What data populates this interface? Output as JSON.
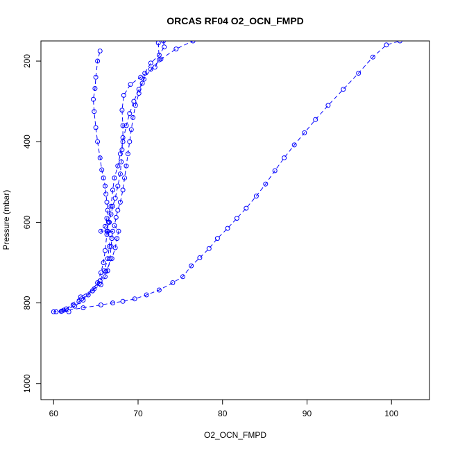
{
  "chart_data": {
    "type": "scatter",
    "title": "ORCAS RF04 O2_OCN_FMPD",
    "xlabel": "O2_OCN_FMPD",
    "ylabel": "Pressure (mbar)",
    "xlim": [
      58.5,
      104.5
    ],
    "ylim": [
      1040,
      150
    ],
    "y_reversed": true,
    "grid": false,
    "legend": "none",
    "x_ticks": [
      60,
      70,
      80,
      90,
      100
    ],
    "y_ticks": [
      200,
      400,
      600,
      800,
      1000
    ],
    "color": "#0000ff",
    "series": [
      {
        "points": [
          [
            61.8,
            822
          ],
          [
            60.9,
            821
          ],
          [
            60.3,
            822
          ],
          [
            60.0,
            822
          ],
          [
            61.5,
            815
          ],
          [
            62.3,
            805
          ],
          [
            63.0,
            797
          ],
          [
            64.1,
            780
          ],
          [
            65.2,
            750
          ],
          [
            65.6,
            725
          ],
          [
            65.9,
            700
          ],
          [
            66.1,
            670
          ],
          [
            66.3,
            630
          ],
          [
            66.5,
            600
          ],
          [
            66.8,
            560
          ],
          [
            67.0,
            520
          ],
          [
            67.2,
            490
          ],
          [
            67.6,
            460
          ],
          [
            67.9,
            430
          ],
          [
            68.2,
            400
          ],
          [
            68.6,
            360
          ],
          [
            69.0,
            330
          ],
          [
            69.5,
            300
          ],
          [
            70.1,
            270
          ],
          [
            70.7,
            245
          ],
          [
            71.5,
            220
          ],
          [
            72.7,
            195
          ],
          [
            74.5,
            170
          ],
          [
            76.5,
            150
          ]
        ]
      },
      {
        "points": [
          [
            61.2,
            818
          ],
          [
            62.5,
            808
          ],
          [
            63.5,
            793
          ],
          [
            64.6,
            770
          ],
          [
            65.5,
            745
          ],
          [
            66.0,
            720
          ],
          [
            66.4,
            690
          ],
          [
            66.6,
            660
          ],
          [
            66.7,
            630
          ],
          [
            66.4,
            622
          ],
          [
            65.6,
            622
          ],
          [
            66.1,
            610
          ],
          [
            66.3,
            590
          ],
          [
            66.4,
            570
          ],
          [
            66.3,
            550
          ],
          [
            66.2,
            530
          ],
          [
            66.1,
            510
          ],
          [
            65.9,
            490
          ],
          [
            65.7,
            470
          ],
          [
            65.5,
            440
          ],
          [
            65.2,
            400
          ],
          [
            65.0,
            365
          ],
          [
            64.8,
            325
          ],
          [
            64.7,
            295
          ],
          [
            64.9,
            268
          ],
          [
            65.0,
            240
          ],
          [
            65.2,
            200
          ],
          [
            65.5,
            175
          ]
        ]
      },
      {
        "points": [
          [
            61.5,
            815
          ],
          [
            63.2,
            785
          ],
          [
            64.8,
            765
          ],
          [
            65.6,
            755
          ],
          [
            66.1,
            735
          ],
          [
            66.4,
            720
          ],
          [
            66.7,
            690
          ],
          [
            66.8,
            660
          ],
          [
            66.9,
            640
          ],
          [
            67.0,
            622
          ],
          [
            66.3,
            622
          ],
          [
            66.6,
            600
          ],
          [
            66.8,
            580
          ],
          [
            67.0,
            560
          ],
          [
            67.3,
            540
          ],
          [
            67.6,
            510
          ],
          [
            67.9,
            480
          ],
          [
            68.0,
            450
          ],
          [
            68.1,
            420
          ],
          [
            68.2,
            390
          ],
          [
            68.2,
            360
          ],
          [
            68.1,
            322
          ],
          [
            68.3,
            285
          ],
          [
            69.1,
            258
          ],
          [
            70.3,
            240
          ],
          [
            72.0,
            215
          ],
          [
            72.5,
            197
          ],
          [
            72.4,
            155
          ]
        ]
      },
      {
        "points": [
          [
            63.3,
            790
          ],
          [
            64.6,
            770
          ],
          [
            65.4,
            752
          ],
          [
            66.2,
            722
          ],
          [
            66.9,
            690
          ],
          [
            67.3,
            663
          ],
          [
            67.5,
            640
          ],
          [
            67.7,
            622
          ],
          [
            67.2,
            608
          ],
          [
            67.4,
            588
          ],
          [
            67.6,
            570
          ],
          [
            67.9,
            550
          ],
          [
            68.2,
            520
          ],
          [
            68.4,
            490
          ],
          [
            68.6,
            460
          ],
          [
            68.8,
            430
          ],
          [
            69.0,
            400
          ],
          [
            69.2,
            370
          ],
          [
            69.4,
            340
          ],
          [
            69.7,
            310
          ],
          [
            70.1,
            280
          ],
          [
            70.5,
            255
          ],
          [
            70.8,
            230
          ],
          [
            71.5,
            205
          ],
          [
            72.5,
            185
          ],
          [
            73.1,
            165
          ],
          [
            73.0,
            150
          ]
        ]
      },
      {
        "points": [
          [
            61.0,
            820
          ],
          [
            63.5,
            812
          ],
          [
            65.6,
            805
          ],
          [
            67.0,
            800
          ],
          [
            68.2,
            796
          ],
          [
            69.6,
            790
          ],
          [
            71.0,
            780
          ],
          [
            72.5,
            768
          ],
          [
            74.1,
            750
          ],
          [
            75.3,
            735
          ],
          [
            76.3,
            708
          ],
          [
            77.3,
            688
          ],
          [
            78.4,
            665
          ],
          [
            79.4,
            640
          ],
          [
            80.6,
            615
          ],
          [
            81.7,
            590
          ],
          [
            82.8,
            565
          ],
          [
            84.0,
            535
          ],
          [
            85.1,
            505
          ],
          [
            86.2,
            472
          ],
          [
            87.3,
            440
          ],
          [
            88.5,
            408
          ],
          [
            89.7,
            378
          ],
          [
            91.0,
            345
          ],
          [
            92.5,
            310
          ],
          [
            94.3,
            270
          ],
          [
            96.1,
            230
          ],
          [
            97.8,
            190
          ],
          [
            99.4,
            160
          ],
          [
            101.0,
            150
          ]
        ]
      }
    ]
  }
}
